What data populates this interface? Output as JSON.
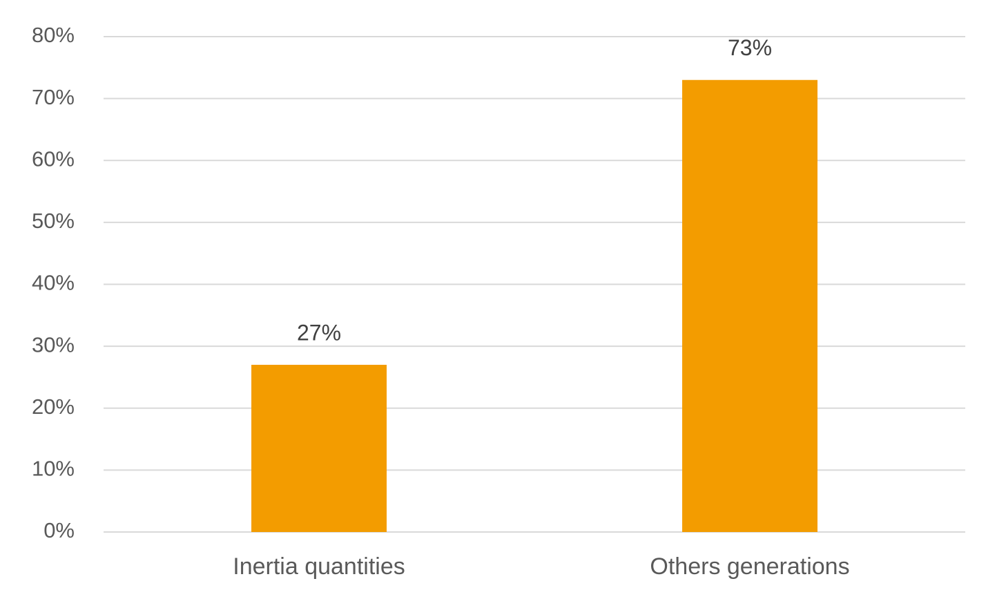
{
  "chart_data": {
    "type": "bar",
    "categories": [
      "Inertia quantities",
      "Others generations"
    ],
    "values": [
      27,
      73
    ],
    "value_labels": [
      "27%",
      "73%"
    ],
    "color": "#f39c00",
    "ylim": [
      0,
      80
    ],
    "yticks": [
      {
        "value": 0,
        "label": "0%"
      },
      {
        "value": 10,
        "label": "10%"
      },
      {
        "value": 20,
        "label": "20%"
      },
      {
        "value": 30,
        "label": "30%"
      },
      {
        "value": 40,
        "label": "40%"
      },
      {
        "value": 50,
        "label": "50%"
      },
      {
        "value": 60,
        "label": "60%"
      },
      {
        "value": 70,
        "label": "70%"
      },
      {
        "value": 80,
        "label": "80%"
      }
    ],
    "grid": true
  }
}
